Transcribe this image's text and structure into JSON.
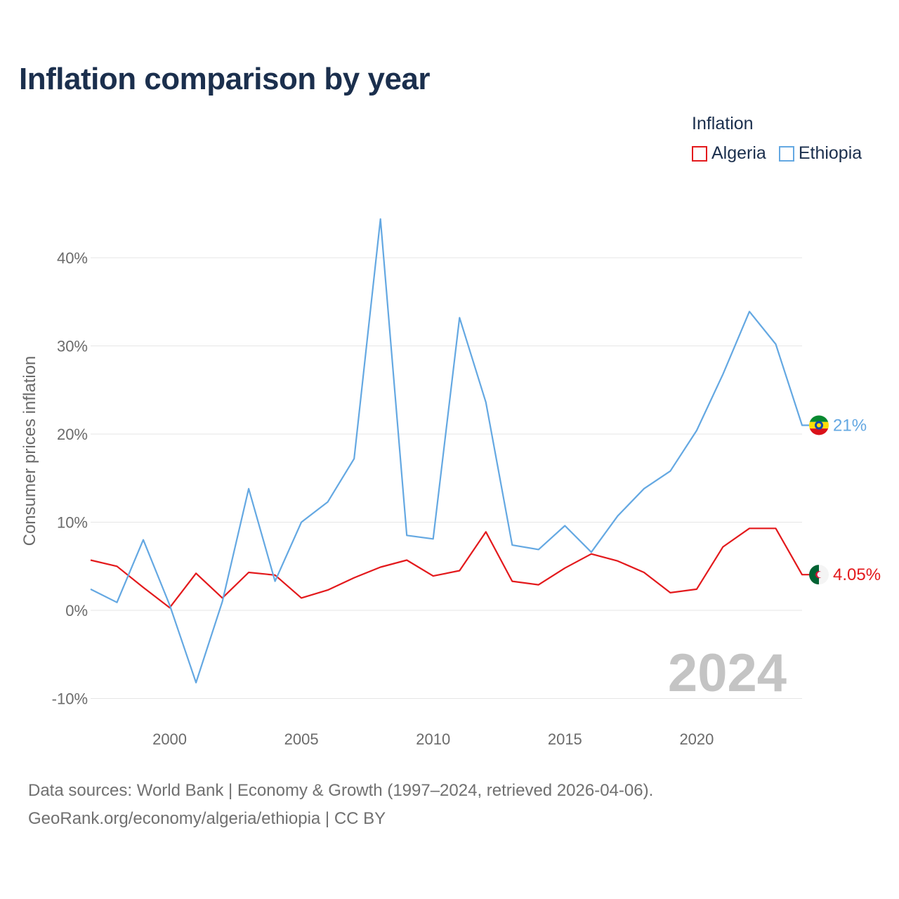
{
  "title": "Inflation comparison by year",
  "legend": {
    "title": "Inflation",
    "items": [
      {
        "label": "Algeria",
        "color": "#e3191c"
      },
      {
        "label": "Ethiopia",
        "color": "#64a8e2"
      }
    ]
  },
  "footer": {
    "line1": "Data sources: World Bank | Economy & Growth (1997–2024, retrieved 2026-04-06).",
    "line2": "GeoRank.org/economy/algeria/ethiopia | CC BY"
  },
  "chart_data": {
    "type": "line",
    "title": "Inflation comparison by year",
    "xlabel": "",
    "ylabel": "Consumer prices inflation",
    "x": [
      1997,
      1998,
      1999,
      2000,
      2001,
      2002,
      2003,
      2004,
      2005,
      2006,
      2007,
      2008,
      2009,
      2010,
      2011,
      2012,
      2013,
      2014,
      2015,
      2016,
      2017,
      2018,
      2019,
      2020,
      2021,
      2022,
      2023,
      2024
    ],
    "xlim": [
      1997,
      2024
    ],
    "ylim": [
      -10,
      44
    ],
    "x_ticks": [
      2000,
      2005,
      2010,
      2015,
      2020
    ],
    "x_tick_labels": [
      "2000",
      "2005",
      "2010",
      "2015",
      "2020"
    ],
    "y_ticks": [
      -10,
      0,
      10,
      20,
      30,
      40
    ],
    "y_tick_labels": [
      "-10%",
      "0%",
      "10%",
      "20%",
      "30%",
      "40%"
    ],
    "grid": true,
    "year_watermark": "2024",
    "series": [
      {
        "name": "Algeria",
        "color": "#e3191c",
        "values": [
          5.7,
          5.0,
          2.6,
          0.3,
          4.2,
          1.4,
          4.3,
          4.0,
          1.4,
          2.3,
          3.7,
          4.9,
          5.7,
          3.9,
          4.5,
          8.9,
          3.3,
          2.9,
          4.8,
          6.4,
          5.6,
          4.3,
          2.0,
          2.4,
          7.2,
          9.3,
          9.3,
          4.05
        ],
        "end_label": "4.05%"
      },
      {
        "name": "Ethiopia",
        "color": "#64a8e2",
        "values": [
          2.4,
          0.9,
          8.0,
          0.6,
          -8.2,
          1.0,
          13.8,
          3.3,
          10.0,
          12.3,
          17.2,
          44.4,
          8.5,
          8.1,
          33.2,
          23.6,
          7.4,
          6.9,
          9.6,
          6.6,
          10.7,
          13.8,
          15.8,
          20.4,
          26.8,
          33.9,
          30.2,
          21.0
        ],
        "end_label": "21%"
      }
    ]
  }
}
